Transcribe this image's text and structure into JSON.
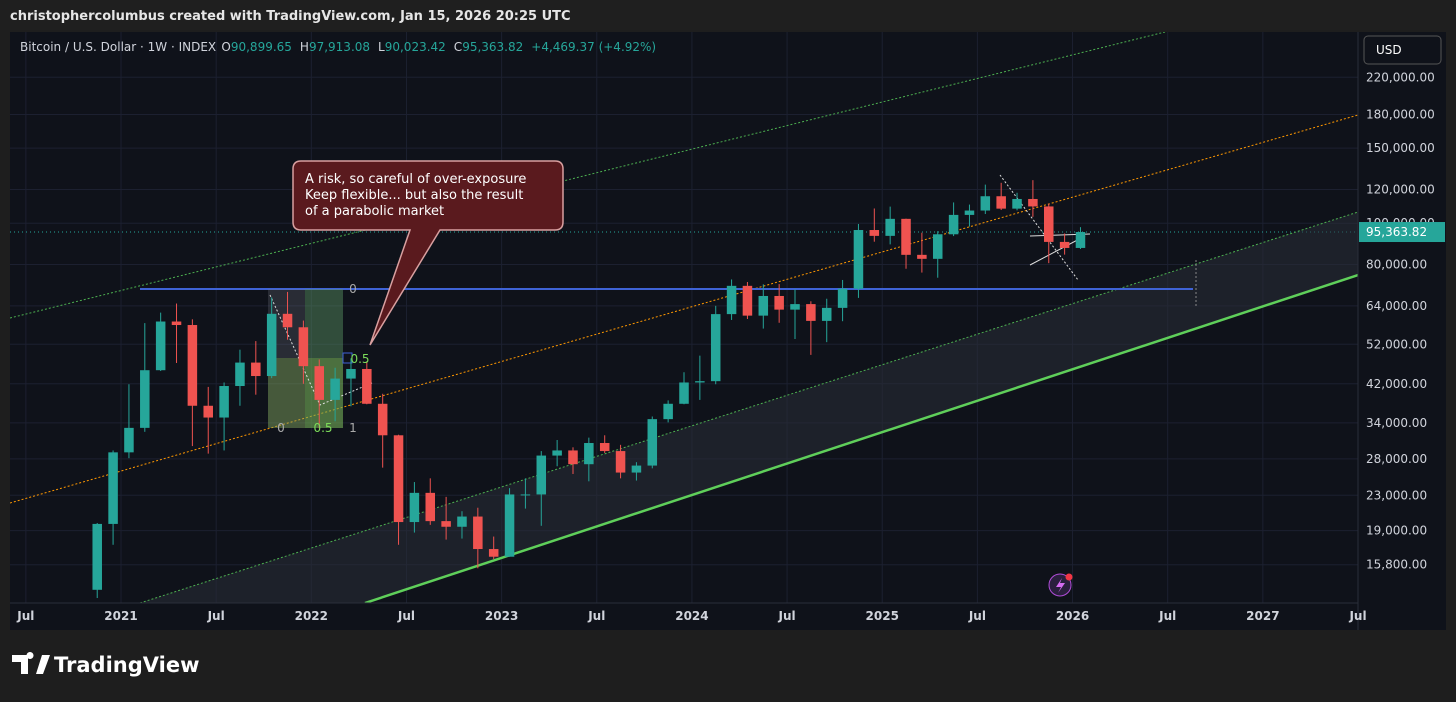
{
  "header": {
    "credit": "christophercolumbus created with TradingView.com, Jan 15, 2026 20:25 UTC"
  },
  "footer": {
    "brand": "TradingView"
  },
  "chart_data": {
    "type": "candlestick",
    "symbol": "Bitcoin / U.S. Dollar · 1W · INDEX",
    "ohlc_legend": [
      {
        "label": "O",
        "value": "90,899.65"
      },
      {
        "label": "H",
        "value": "97,913.08"
      },
      {
        "label": "L",
        "value": "90,023.42"
      },
      {
        "label": "C",
        "value": "95,363.82"
      }
    ],
    "change": "+4,469.37 (+4.92%)",
    "currency": "USD",
    "last_price": {
      "value": 95363.82,
      "label": "95,363.82"
    },
    "annotation": [
      "A risk, so careful of over-exposure",
      "Keep flexible... but also the result",
      "of a parabolic market"
    ],
    "fib_labels": [
      "0",
      "0.5",
      "1",
      "0",
      "0.5"
    ],
    "log_scale": true,
    "up_color": "#26a69a",
    "down_color": "#ef5350",
    "x": [
      "2020-11",
      "2020-12",
      "2021-01",
      "2021-02",
      "2021-03",
      "2021-04",
      "2021-05",
      "2021-06",
      "2021-07",
      "2021-08",
      "2021-09",
      "2021-10",
      "2021-11",
      "2021-12",
      "2022-01",
      "2022-02",
      "2022-03",
      "2022-04",
      "2022-05",
      "2022-06",
      "2022-07",
      "2022-08",
      "2022-09",
      "2022-10",
      "2022-11",
      "2022-12",
      "2023-01",
      "2023-02",
      "2023-03",
      "2023-04",
      "2023-05",
      "2023-06",
      "2023-07",
      "2023-08",
      "2023-09",
      "2023-10",
      "2023-11",
      "2023-12",
      "2024-01",
      "2024-02",
      "2024-03",
      "2024-04",
      "2024-05",
      "2024-06",
      "2024-07",
      "2024-08",
      "2024-09",
      "2024-10",
      "2024-11",
      "2024-12",
      "2025-01",
      "2025-02",
      "2025-03",
      "2025-04",
      "2025-05",
      "2025-06",
      "2025-07",
      "2025-08",
      "2025-09",
      "2025-10",
      "2025-11",
      "2025-12",
      "2026-01"
    ],
    "open": [
      13800,
      19700,
      29000,
      33100,
      45200,
      58800,
      57700,
      37300,
      35000,
      41500,
      47100,
      43800,
      61300,
      57000,
      46200,
      38500,
      43200,
      45500,
      37700,
      31800,
      19900,
      23300,
      20000,
      19400,
      20500,
      17200,
      16500,
      23100,
      23100,
      28500,
      29300,
      27200,
      30500,
      29200,
      26000,
      27000,
      34700,
      37700,
      42300,
      42600,
      61200,
      71300,
      60700,
      67500,
      62700,
      64600,
      59000,
      63300,
      70200,
      96400,
      93400,
      102400,
      84300,
      82500,
      94200,
      104600,
      107100,
      115700,
      108200,
      114000,
      109500,
      90400,
      87500
    ],
    "high": [
      19800,
      29300,
      41900,
      58300,
      61700,
      64800,
      59500,
      41300,
      42300,
      50500,
      52900,
      67000,
      69000,
      59100,
      47900,
      45800,
      48200,
      47400,
      39800,
      31900,
      24700,
      25200,
      22800,
      21100,
      21500,
      18400,
      23900,
      25200,
      29200,
      31000,
      29800,
      31400,
      31800,
      30200,
      27500,
      35200,
      38400,
      44700,
      48900,
      64000,
      73800,
      72800,
      71900,
      72000,
      70000,
      65600,
      66500,
      73600,
      99600,
      108300,
      109400,
      102500,
      95000,
      95800,
      111900,
      110600,
      123200,
      124400,
      117900,
      126200,
      111200,
      94600,
      97900
    ],
    "low": [
      13200,
      17600,
      28100,
      32400,
      45000,
      47000,
      30000,
      28800,
      29300,
      37300,
      39600,
      43300,
      53300,
      42000,
      33000,
      34300,
      37200,
      37600,
      26700,
      17600,
      18800,
      19600,
      18100,
      18200,
      15500,
      16300,
      16500,
      21400,
      19500,
      26900,
      25800,
      24800,
      28900,
      25200,
      24900,
      26600,
      34100,
      37600,
      38500,
      41900,
      59300,
      59600,
      56600,
      58400,
      53500,
      49100,
      52600,
      58900,
      66800,
      90500,
      89200,
      78200,
      76600,
      74500,
      93300,
      98200,
      105100,
      107400,
      107200,
      103500,
      80600,
      84400,
      87000
    ],
    "close": [
      19700,
      29000,
      33100,
      45200,
      58800,
      57700,
      37300,
      35000,
      41500,
      47100,
      43800,
      61300,
      57000,
      46200,
      38500,
      43200,
      45500,
      37700,
      31800,
      19900,
      23300,
      20000,
      19400,
      20500,
      17200,
      16500,
      23100,
      23100,
      28500,
      29300,
      27200,
      30500,
      29200,
      26000,
      27000,
      34700,
      37700,
      42300,
      42600,
      61200,
      71300,
      60700,
      67500,
      62700,
      64600,
      59000,
      63300,
      70200,
      96400,
      93400,
      102400,
      84300,
      82500,
      94200,
      104600,
      107100,
      115700,
      108200,
      114000,
      109500,
      90400,
      87500,
      95363.82
    ],
    "xlim": [
      "2020-06",
      "2027-07"
    ],
    "xticks": [
      {
        "value": "2020-07",
        "label": "Jul"
      },
      {
        "value": "2021-01",
        "label": "2021"
      },
      {
        "value": "2021-07",
        "label": "Jul"
      },
      {
        "value": "2022-01",
        "label": "2022"
      },
      {
        "value": "2022-07",
        "label": "Jul"
      },
      {
        "value": "2023-01",
        "label": "2023"
      },
      {
        "value": "2023-07",
        "label": "Jul"
      },
      {
        "value": "2024-01",
        "label": "2024"
      },
      {
        "value": "2024-07",
        "label": "Jul"
      },
      {
        "value": "2025-01",
        "label": "2025"
      },
      {
        "value": "2025-07",
        "label": "Jul"
      },
      {
        "value": "2026-01",
        "label": "2026"
      },
      {
        "value": "2026-07",
        "label": "Jul"
      },
      {
        "value": "2027-01",
        "label": "2027"
      },
      {
        "value": "2027-07",
        "label": "Jul"
      }
    ],
    "ylim": [
      12850,
      281000
    ],
    "yticks": [
      {
        "value": 220000,
        "label": "220,000.00"
      },
      {
        "value": 180000,
        "label": "180,000.00"
      },
      {
        "value": 150000,
        "label": "150,000.00"
      },
      {
        "value": 120000,
        "label": "120,000.00"
      },
      {
        "value": 100000,
        "label": "100,000.00"
      },
      {
        "value": 80000,
        "label": "80,000.00"
      },
      {
        "value": 64000,
        "label": "64,000.00"
      },
      {
        "value": 52000,
        "label": "52,000.00"
      },
      {
        "value": 42000,
        "label": "42,000.00"
      },
      {
        "value": 34000,
        "label": "34,000.00"
      },
      {
        "value": 28000,
        "label": "28,000.00"
      },
      {
        "value": 23000,
        "label": "23,000.00"
      },
      {
        "value": 19000,
        "label": "19,000.00"
      },
      {
        "value": 15800,
        "label": "15,800.00"
      }
    ],
    "grid": true
  }
}
